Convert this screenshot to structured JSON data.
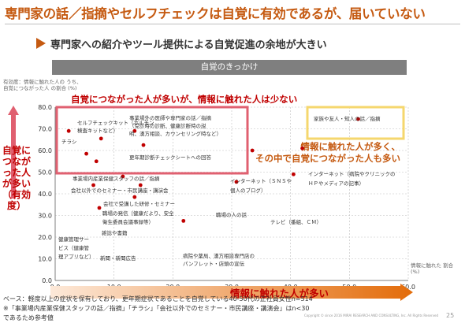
{
  "header": {
    "title": "専門家の話／指摘やセルフチェックは自覚に有効であるが、届いていない",
    "subtitle": "専門家への紹介やツール提供による自覚促進の余地が大きい",
    "banner": "自覚のきっかけ"
  },
  "axis_notes": {
    "y": "有効度：情報に触れた人の うち、自覚につながった人 の割合",
    "y_unit": "(%)",
    "x": "情報に触れた 割合",
    "x_unit": "(%)"
  },
  "callouts": {
    "red_box": "自覚につながった人が多いが、情報に触れた人は少ない",
    "yellow_box": "情報に触れた人が多く、その中で自覚につながった人も多い",
    "vertical": "自覚につながった人が多い（有効度）",
    "horizontal": "情報に触れた人が多い"
  },
  "footnotes": {
    "line1": "ベース：軽度以上の症状を保有しており、更年期症状であることを自覚している40-50代の正社員女性n=514",
    "line2": "※「事業場内産業保健スタッフの話／指摘」「チラシ」「会社以外でのセミナー・市民講座・講演会」はn<30",
    "line3": "であるため参考値",
    "copyright": "Copyright © since 2016  MIRAI RESEARCH AND CONSULTING, Inc. All Rights Reserved",
    "page": "25"
  },
  "colors": {
    "accent": "#c55a11",
    "red": "#c00000",
    "point": "#c00000",
    "red_box": "#e06070",
    "yellow_box": "#f5d76e"
  },
  "chart_data": {
    "type": "scatter",
    "xlim": [
      0,
      60
    ],
    "ylim": [
      0,
      80
    ],
    "x_ticks": [
      "0.0",
      "10.0",
      "20.0",
      "30.0",
      "40.0",
      "50.0",
      "60.0"
    ],
    "y_ticks": [
      "0.0",
      "10.0",
      "20.0",
      "30.0",
      "40.0",
      "50.0",
      "60.0",
      "70.0",
      "80.0"
    ],
    "grid": true,
    "points": [
      {
        "label": "チラシ",
        "x": 2.3,
        "y": 69.0
      },
      {
        "label": "セルフチェックキット（ホルモン検査キットなど）",
        "x": 7.8,
        "y": 65.5
      },
      {
        "label": "事業場外の医師や専門家の話／指摘（受診時の診断、健康診断時の説明、漢方相談、カウンセリング時など）",
        "x": 13.5,
        "y": 69.0
      },
      {
        "label": "更年期診断チェックシートへの回答",
        "x": 15.0,
        "y": 62.5
      },
      {
        "label": "事業場内産業保健スタッフの話／指摘",
        "x": 5.3,
        "y": 58.5
      },
      {
        "label": "会社以外でのセミナー・市民講座・講演会",
        "x": 7.0,
        "y": 55.0
      },
      {
        "label": "会社で受講した研修・セミナー",
        "x": 11.5,
        "y": 48.0
      },
      {
        "label": "職場の発信（健康だより、安全衛生委員会議事録等）",
        "x": 14.5,
        "y": 44.0
      },
      {
        "label": "健康管理サービス（健康管理アプリなど）",
        "x": 6.5,
        "y": 44.0
      },
      {
        "label": "雑誌や書籍",
        "x": 13.5,
        "y": 38.5
      },
      {
        "label": "新聞・新聞広告",
        "x": 7.5,
        "y": 33.5
      },
      {
        "label": "職場の人の話",
        "x": 30.8,
        "y": 45.5
      },
      {
        "label": "病院や薬局、漢方相談専門店のパンフレット・店頭の宣伝",
        "x": 21.8,
        "y": 27.5
      },
      {
        "label": "インターネット（ＳＮＳや個人のブログ）",
        "x": 33.5,
        "y": 60.0
      },
      {
        "label": "インターネット（病院やクリニックのＨＰやメディアの記事）",
        "x": 42.0,
        "y": 61.0
      },
      {
        "label": "テレビ（番組、ＣＭ）",
        "x": 40.5,
        "y": 49.0
      },
      {
        "label": "家族や友人・知人の話／指摘",
        "x": 51.5,
        "y": 74.5
      }
    ]
  },
  "point_labels": [
    {
      "lines": [
        "チラシ"
      ]
    },
    {
      "lines": [
        "セルフチェックキット（ホルモン",
        "検査キットなど）"
      ]
    },
    {
      "lines": [
        "事業場外の医師や専門家の話／指摘",
        "（受診時の診断、健康診断時の説",
        "明、漢方相談、カウンセリング時など）"
      ]
    },
    {
      "lines": [
        "更年期診断チェックシートへの回答"
      ]
    },
    {
      "lines": [
        "事業場内産業保健スタッフの話／指摘"
      ]
    },
    {
      "lines": [
        "会社以外でのセミナー・市民講座・講演会"
      ]
    },
    {
      "lines": [
        "会社で受講した研修・セミナー"
      ]
    },
    {
      "lines": [
        "職場の発信（健康だより、安全",
        "衛生委員会議事録等）"
      ]
    },
    {
      "lines": [
        "健康管理サー",
        "ビス（健康管",
        "理アプリなど）"
      ]
    },
    {
      "lines": [
        "雑誌や書籍"
      ]
    },
    {
      "lines": [
        "新聞・新聞広告"
      ]
    },
    {
      "lines": [
        "職場の人の話"
      ]
    },
    {
      "lines": [
        "病院や薬局、漢方相談専門店の",
        "パンフレット・店頭の宣伝"
      ]
    },
    {
      "lines": [
        "インターネット（ＳＮＳや",
        "個人のブログ）"
      ]
    },
    {
      "lines": [
        "インターネット（病院やクリニックの",
        "ＨＰやメディアの記事）"
      ]
    },
    {
      "lines": [
        "テレビ（番組、ＣＭ）"
      ]
    },
    {
      "lines": [
        "家族や友人・知人の話／指摘"
      ]
    }
  ]
}
